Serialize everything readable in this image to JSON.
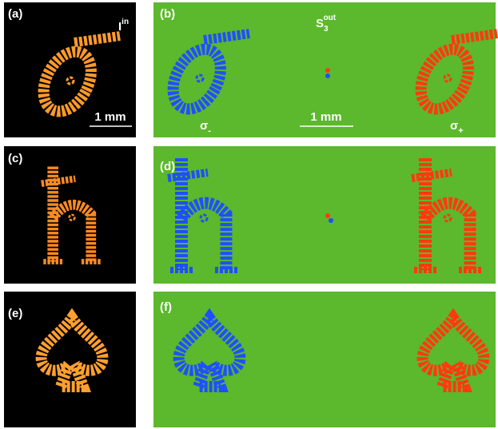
{
  "panels": [
    {
      "label": "(a)",
      "title": "I",
      "title_sup": "in",
      "scale_bar": "1 mm"
    },
    {
      "label": "(b)",
      "title": "S",
      "title_sub": "3",
      "title_sup": "out",
      "scale_bar": "1 mm",
      "left_marker": "σ",
      "left_marker_sub": "-",
      "right_marker": "σ",
      "right_marker_sub": "+"
    },
    {
      "label": "(c)"
    },
    {
      "label": "(d)"
    },
    {
      "label": "(e)"
    },
    {
      "label": "(f)"
    }
  ]
}
